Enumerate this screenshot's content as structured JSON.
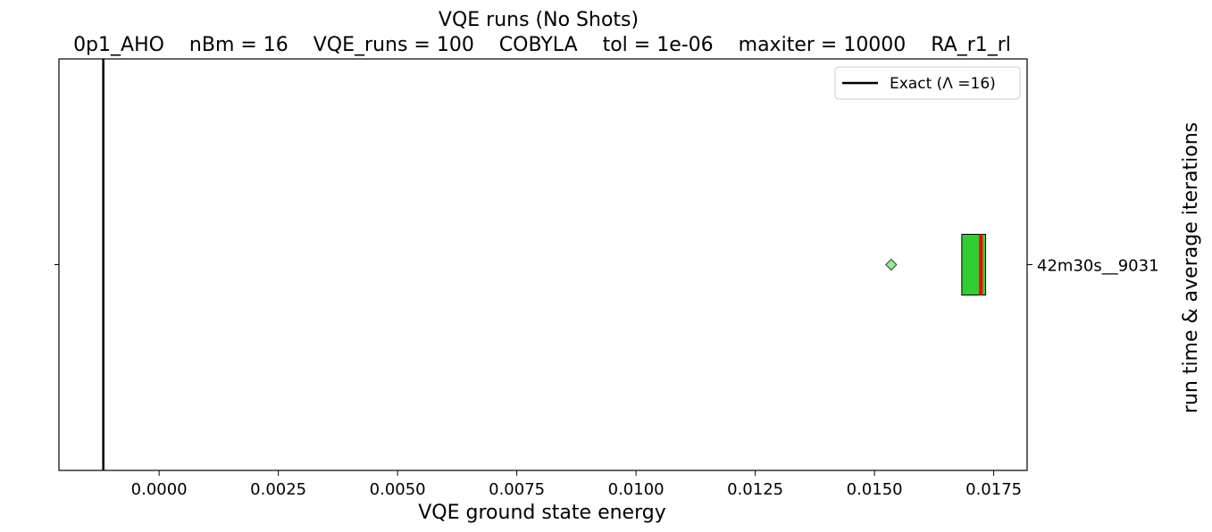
{
  "chart_data": {
    "type": "box",
    "orientation": "horizontal",
    "title": "VQE runs (No Shots)",
    "subtitle": "0p1_AHO    nBm = 16    VQE_runs = 100    COBYLA    tol = 1e-06    maxiter = 10000    RA_r1_rl",
    "xlabel": "VQE ground state energy",
    "ylabel_right": "run time & average iterations",
    "xlim": [
      -0.0021,
      0.0182
    ],
    "xticks": [
      0.0,
      0.0025,
      0.005,
      0.0075,
      0.01,
      0.0125,
      0.015,
      0.0175
    ],
    "xtick_labels": [
      "0.0000",
      "0.0025",
      "0.0050",
      "0.0075",
      "0.0100",
      "0.0125",
      "0.0150",
      "0.0175"
    ],
    "categories": [
      "42m30s__9031"
    ],
    "boxes": [
      {
        "label": "42m30s__9031",
        "q1": 0.01683,
        "median": 0.01723,
        "q3": 0.01733,
        "whisker_low": 0.01683,
        "whisker_high": 0.01733,
        "fliers": [
          0.01535
        ],
        "box_color": "#32cd32",
        "median_color": "#ff0000",
        "flier_color": "#90ee90"
      }
    ],
    "reference_line": {
      "x": -0.00117,
      "label": "Exact (Λ =16)",
      "color": "#000000"
    },
    "legend_position": "upper right",
    "grid": false
  }
}
